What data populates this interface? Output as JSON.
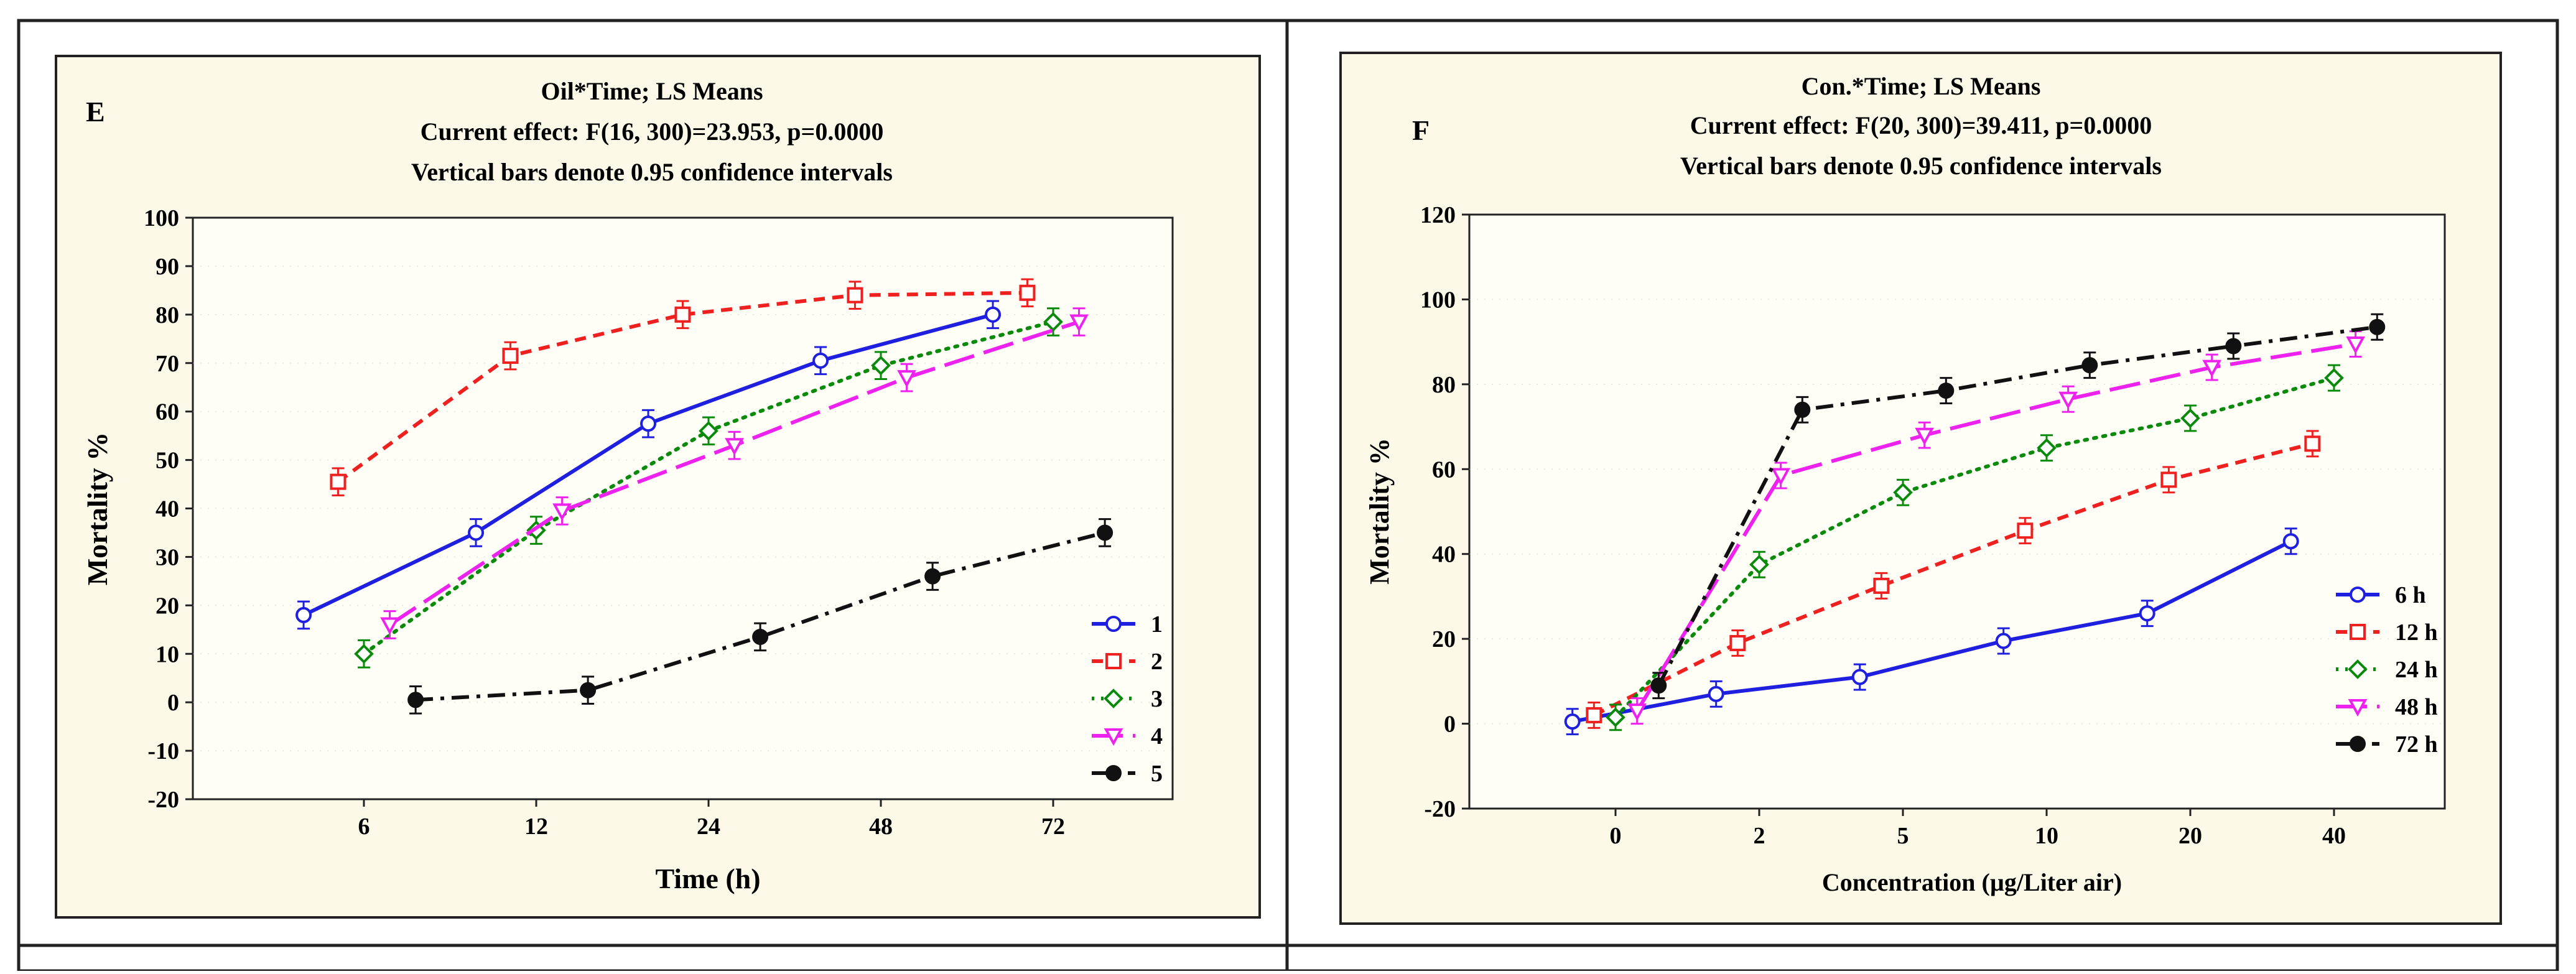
{
  "colors": {
    "blue": "#1f1fe0",
    "red": "#ee2020",
    "green": "#0a8a0a",
    "magenta": "#ee22ee",
    "black": "#111111",
    "panel_bg": "#fdf9e8",
    "frame": "#222222"
  },
  "chart_data": [
    {
      "type": "line",
      "panel_letter": "E",
      "title": "Oil*Time; LS Means",
      "subtitle": "Current effect: F(16, 300)=23.953, p=0.0000",
      "note": "Vertical bars denote 0.95 confidence intervals",
      "xlabel": "Time (h)",
      "ylabel": "Mortality %",
      "categories": [
        "6",
        "12",
        "24",
        "48",
        "72"
      ],
      "ylim": [
        -20,
        100
      ],
      "yticks": [
        "-20",
        "-10",
        "0",
        "10",
        "20",
        "30",
        "40",
        "50",
        "60",
        "70",
        "80",
        "90",
        "100"
      ],
      "legend_position": "bottom-right",
      "series": [
        {
          "name": "1",
          "color": "blue",
          "dash": "solid",
          "marker": "circle",
          "x": [
            -0.35,
            0.65,
            1.65,
            2.65,
            3.65
          ],
          "values": [
            18,
            35,
            57.5,
            70.5,
            80
          ],
          "ci": [
            2.8,
            2.8,
            2.8,
            2.8,
            2.8
          ]
        },
        {
          "name": "2",
          "color": "red",
          "dash": "short",
          "marker": "square",
          "x": [
            -0.15,
            0.85,
            1.85,
            2.85,
            3.85
          ],
          "values": [
            45.5,
            71.5,
            80,
            84,
            84.5
          ],
          "ci": [
            2.8,
            2.8,
            2.8,
            2.8,
            2.8
          ]
        },
        {
          "name": "3",
          "color": "green",
          "dash": "dot",
          "marker": "diamond",
          "x": [
            0,
            1,
            2,
            3,
            4
          ],
          "values": [
            10,
            35.5,
            56,
            69.5,
            78.5
          ],
          "ci": [
            2.8,
            2.8,
            2.8,
            2.8,
            2.8
          ]
        },
        {
          "name": "4",
          "color": "magenta",
          "dash": "long",
          "marker": "triangle",
          "x": [
            0.15,
            1.15,
            2.15,
            3.15,
            4.15
          ],
          "values": [
            16,
            39.5,
            53,
            67,
            78.5
          ],
          "ci": [
            2.8,
            2.8,
            2.8,
            2.8,
            2.8
          ]
        },
        {
          "name": "5",
          "color": "black",
          "dash": "dashdot",
          "marker": "filled-circle",
          "x": [
            0.3,
            1.3,
            2.3,
            3.3,
            4.3
          ],
          "values": [
            0.5,
            2.5,
            13.5,
            26,
            35
          ],
          "ci": [
            2.8,
            2.8,
            2.8,
            2.8,
            2.8
          ]
        }
      ]
    },
    {
      "type": "line",
      "panel_letter": "F",
      "title": "Con.*Time; LS Means",
      "subtitle": "Current effect: F(20, 300)=39.411, p=0.0000",
      "note": "Vertical bars denote 0.95 confidence intervals",
      "xlabel": "Concentration (µg/Liter air)",
      "ylabel": "Mortality %",
      "categories": [
        "0",
        "2",
        "5",
        "10",
        "20",
        "40"
      ],
      "ylim": [
        -20,
        120
      ],
      "yticks": [
        "-20",
        "0",
        "20",
        "40",
        "60",
        "80",
        "100",
        "120"
      ],
      "legend_position": "bottom-right",
      "series": [
        {
          "name": "6 h",
          "color": "blue",
          "dash": "solid",
          "marker": "circle",
          "x": [
            -0.3,
            0.7,
            1.7,
            2.7,
            3.7,
            4.7
          ],
          "values": [
            0.5,
            7,
            11,
            19.5,
            26,
            43
          ],
          "ci": [
            3,
            3,
            3,
            3,
            3,
            3
          ]
        },
        {
          "name": "12 h",
          "color": "red",
          "dash": "short",
          "marker": "square",
          "x": [
            -0.15,
            0.85,
            1.85,
            2.85,
            3.85,
            4.85
          ],
          "values": [
            2,
            19,
            32.5,
            45.5,
            57.5,
            66
          ],
          "ci": [
            3,
            3,
            3,
            3,
            3,
            3
          ]
        },
        {
          "name": "24 h",
          "color": "green",
          "dash": "dot",
          "marker": "diamond",
          "x": [
            0,
            1,
            2,
            3,
            4,
            5
          ],
          "values": [
            1.5,
            37.5,
            54.5,
            65,
            72,
            81.5
          ],
          "ci": [
            3,
            3,
            3,
            3,
            3,
            3
          ]
        },
        {
          "name": "48 h",
          "color": "magenta",
          "dash": "long",
          "marker": "triangle",
          "x": [
            0.15,
            1.15,
            2.15,
            3.15,
            4.15,
            5.15
          ],
          "values": [
            3,
            58.5,
            68,
            76.5,
            84,
            89.5
          ],
          "ci": [
            3,
            3,
            3,
            3,
            3,
            3
          ]
        },
        {
          "name": "72 h",
          "color": "black",
          "dash": "dashdot",
          "marker": "filled-circle",
          "x": [
            0.3,
            1.3,
            2.3,
            3.3,
            4.3,
            5.3
          ],
          "values": [
            9,
            74,
            78.5,
            84.5,
            89,
            93.5
          ],
          "ci": [
            3,
            3,
            3,
            3,
            3,
            3
          ]
        }
      ]
    }
  ]
}
